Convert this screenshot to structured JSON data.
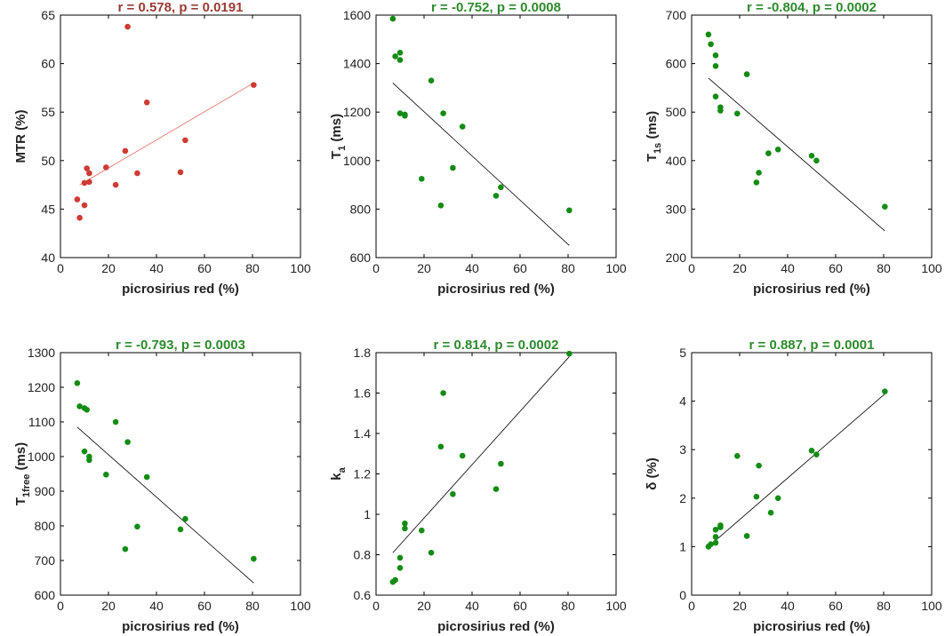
{
  "figure": {
    "shared_xlabel": "picrosirius red (%)",
    "positive_color": "#b04a3e",
    "negative_color": "#2e8a2e",
    "marker_green": "#138c13",
    "marker_red": "#cf3b33"
  },
  "chart_data": [
    {
      "type": "scatter",
      "title": "r = 0.578, p = 0.0191",
      "title_color": "#9b3b35",
      "ylabel": "MTR (%)",
      "ylabel_main": "MTR (%)",
      "ylabel_sub": "",
      "ylabel_tail": "",
      "xlabel": "picrosirius red (%)",
      "xlim": [
        0,
        100
      ],
      "ylim": [
        40,
        65
      ],
      "xticks": [
        0,
        20,
        40,
        60,
        80,
        100
      ],
      "yticks": [
        40,
        45,
        50,
        55,
        60,
        65
      ],
      "marker_color": "#cf3b33",
      "line_color": "#e06a5a",
      "fit": [
        [
          8,
          47.5
        ],
        [
          80.5,
          58.0
        ]
      ],
      "x": [
        7,
        8,
        10,
        10,
        11,
        12,
        12,
        19,
        23,
        27,
        28,
        32,
        36,
        50,
        52,
        80.5
      ],
      "y": [
        46.0,
        44.1,
        47.7,
        45.4,
        49.2,
        48.7,
        47.8,
        49.3,
        47.5,
        51.0,
        63.8,
        48.7,
        56.0,
        48.8,
        52.1,
        57.8
      ]
    },
    {
      "type": "scatter",
      "title": "r = -0.752, p = 0.0008",
      "title_color": "#2e8a2e",
      "ylabel": "T1 (ms)",
      "ylabel_main": "T",
      "ylabel_sub": "1",
      "ylabel_tail": " (ms)",
      "xlabel": "picrosirius red (%)",
      "xlim": [
        0,
        100
      ],
      "ylim": [
        600,
        1600
      ],
      "xticks": [
        0,
        20,
        40,
        60,
        80,
        100
      ],
      "yticks": [
        600,
        800,
        1000,
        1200,
        1400,
        1600
      ],
      "marker_color": "#138c13",
      "line_color": "#000000",
      "fit": [
        [
          7,
          1320
        ],
        [
          80.5,
          650
        ]
      ],
      "x": [
        7,
        8,
        10,
        10,
        10,
        12,
        12,
        19,
        23,
        27,
        28,
        32,
        36,
        50,
        52,
        80.5
      ],
      "y": [
        1585,
        1430,
        1445,
        1415,
        1195,
        1185,
        1190,
        925,
        1330,
        815,
        1195,
        970,
        1140,
        855,
        890,
        795
      ]
    },
    {
      "type": "scatter",
      "title": "r = -0.804, p = 0.0002",
      "title_color": "#2e8a2e",
      "ylabel": "T1s (ms)",
      "ylabel_main": "T",
      "ylabel_sub": "1s",
      "ylabel_tail": " (ms)",
      "xlabel": "picrosirius red (%)",
      "xlim": [
        0,
        100
      ],
      "ylim": [
        200,
        700
      ],
      "xticks": [
        0,
        20,
        40,
        60,
        80,
        100
      ],
      "yticks": [
        200,
        300,
        400,
        500,
        600,
        700
      ],
      "marker_color": "#138c13",
      "line_color": "#000000",
      "fit": [
        [
          7,
          570
        ],
        [
          80.5,
          255
        ]
      ],
      "x": [
        7,
        8,
        10,
        10,
        10,
        12,
        12,
        19,
        23,
        27,
        28,
        32,
        36,
        50,
        52,
        80.5
      ],
      "y": [
        660,
        640,
        617,
        595,
        532,
        510,
        503,
        497,
        578,
        355,
        375,
        415,
        423,
        410,
        400,
        305
      ]
    },
    {
      "type": "scatter",
      "title": "r = -0.793, p = 0.0003",
      "title_color": "#2e8a2e",
      "ylabel": "T1free (ms)",
      "ylabel_main": "T",
      "ylabel_sub": "1free",
      "ylabel_tail": " (ms)",
      "xlabel": "picrosirius red (%)",
      "xlim": [
        0,
        100
      ],
      "ylim": [
        600,
        1300
      ],
      "xticks": [
        0,
        20,
        40,
        60,
        80,
        100
      ],
      "yticks": [
        600,
        700,
        800,
        900,
        1000,
        1100,
        1200,
        1300
      ],
      "marker_color": "#138c13",
      "line_color": "#000000",
      "fit": [
        [
          7,
          1085
        ],
        [
          80.5,
          635
        ]
      ],
      "x": [
        7,
        8,
        10,
        11,
        10,
        12,
        12,
        19,
        23,
        27,
        28,
        32,
        36,
        50,
        52,
        80.5
      ],
      "y": [
        1212,
        1145,
        1140,
        1135,
        1015,
        1000,
        990,
        948,
        1100,
        733,
        1042,
        798,
        941,
        790,
        820,
        705
      ]
    },
    {
      "type": "scatter",
      "title": "r = 0.814, p = 0.0002",
      "title_color": "#2e8a2e",
      "ylabel": "ka",
      "ylabel_main": "k",
      "ylabel_sub": "a",
      "ylabel_tail": "",
      "xlabel": "picrosirius red (%)",
      "xlim": [
        0,
        100
      ],
      "ylim": [
        0.6,
        1.8
      ],
      "xticks": [
        0,
        20,
        40,
        60,
        80,
        100
      ],
      "yticks": [
        0.6,
        0.8,
        1,
        1.2,
        1.4,
        1.6,
        1.8
      ],
      "marker_color": "#138c13",
      "line_color": "#000000",
      "fit": [
        [
          7,
          0.81
        ],
        [
          80.5,
          1.78
        ]
      ],
      "x": [
        7,
        8,
        10,
        10,
        12,
        12,
        19,
        23,
        27,
        28,
        32,
        36,
        50,
        52,
        80.5
      ],
      "y": [
        0.665,
        0.675,
        0.735,
        0.785,
        0.955,
        0.93,
        0.92,
        0.81,
        1.335,
        1.6,
        1.1,
        1.29,
        1.125,
        1.25,
        1.795
      ]
    },
    {
      "type": "scatter",
      "title": "r = 0.887, p = 0.0001",
      "title_color": "#2e8a2e",
      "ylabel": "δ (%)",
      "ylabel_main": "δ (%)",
      "ylabel_sub": "",
      "ylabel_tail": "",
      "xlabel": "picrosirius red (%)",
      "xlim": [
        0,
        100
      ],
      "ylim": [
        0,
        5
      ],
      "xticks": [
        0,
        20,
        40,
        60,
        80,
        100
      ],
      "yticks": [
        0,
        1,
        2,
        3,
        4,
        5
      ],
      "marker_color": "#138c13",
      "line_color": "#000000",
      "fit": [
        [
          7,
          1.0
        ],
        [
          80.5,
          4.15
        ]
      ],
      "x": [
        7,
        8,
        10,
        10,
        10,
        12,
        12,
        19,
        23,
        27,
        28,
        33,
        36,
        50,
        52,
        80.5
      ],
      "y": [
        1.0,
        1.05,
        1.08,
        1.35,
        1.2,
        1.4,
        1.44,
        2.87,
        1.22,
        2.03,
        2.67,
        1.7,
        2.0,
        2.98,
        2.9,
        4.2
      ]
    }
  ]
}
